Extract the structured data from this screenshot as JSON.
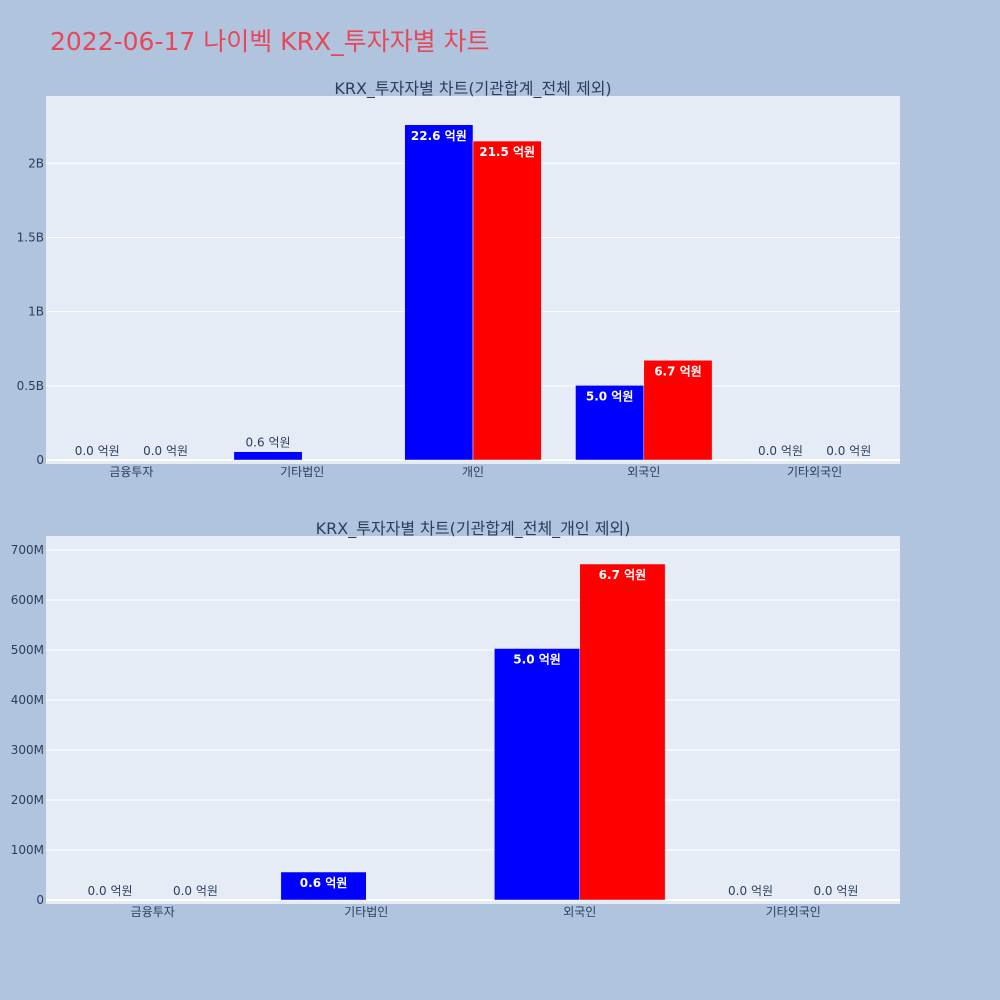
{
  "page": {
    "title": "2022-06-17 나이벡 KRX_투자자별 차트"
  },
  "colors": {
    "buy": "#0000ff",
    "sell": "#ff0000",
    "plot_bg": "#e5ecf6",
    "grid": "#ffffff",
    "text": "#2a3f5f",
    "page_bg": "#b0c4de"
  },
  "chart_data": [
    {
      "type": "bar",
      "title": "KRX_투자자별 차트(기관합계_전체 제외)",
      "categories": [
        "금융투자",
        "기타법인",
        "개인",
        "외국인",
        "기타외국인"
      ],
      "series": [
        {
          "values": [
            0,
            56000000,
            2260000000,
            503000000,
            0
          ],
          "labels": [
            "0.0 억원",
            "0.6 억원",
            "22.6 억원",
            "5.0 억원",
            "0.0 억원"
          ],
          "color": "#0000ff"
        },
        {
          "values": [
            0,
            0,
            2150000000,
            672000000,
            0
          ],
          "labels": [
            "0.0 억원",
            "",
            "21.5 억원",
            "6.7 억원",
            "0.0 억원"
          ],
          "color": "#ff0000"
        }
      ],
      "ylim": [
        0,
        2400000000
      ],
      "yticks": [
        0,
        500000000,
        1000000000,
        1500000000,
        2000000000
      ],
      "ytick_labels": [
        "0",
        "0.5B",
        "1B",
        "1.5B",
        "2B"
      ]
    },
    {
      "type": "bar",
      "title": "KRX_투자자별 차트(기관합계_전체_개인 제외)",
      "categories": [
        "금융투자",
        "기타법인",
        "외국인",
        "기타외국인"
      ],
      "series": [
        {
          "values": [
            0,
            56000000,
            503000000,
            0
          ],
          "labels": [
            "0.0 억원",
            "0.6 억원",
            "5.0 억원",
            "0.0 억원"
          ],
          "color": "#0000ff"
        },
        {
          "values": [
            0,
            0,
            672000000,
            0
          ],
          "labels": [
            "0.0 억원",
            "",
            "6.7 억원",
            "0.0 억원"
          ],
          "color": "#ff0000"
        }
      ],
      "ylim": [
        0,
        712000000
      ],
      "yticks": [
        0,
        100000000,
        200000000,
        300000000,
        400000000,
        500000000,
        600000000,
        700000000
      ],
      "ytick_labels": [
        "0",
        "100M",
        "200M",
        "300M",
        "400M",
        "500M",
        "600M",
        "700M"
      ]
    }
  ]
}
